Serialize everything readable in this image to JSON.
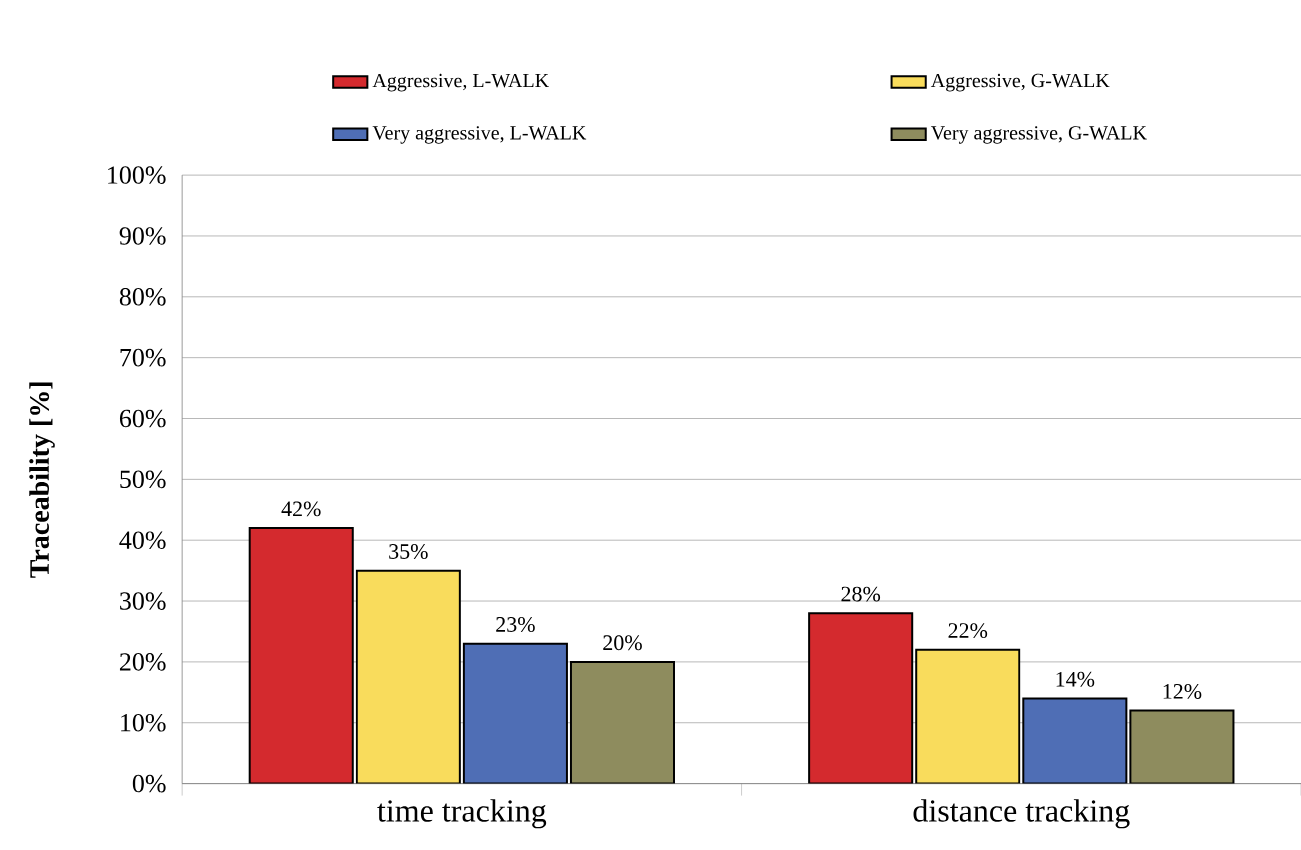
{
  "chart_data": {
    "type": "bar",
    "ylabel": "Traceability [%]",
    "categories": [
      "time tracking",
      "distance tracking"
    ],
    "series": [
      {
        "name": "Aggressive, L-WALK",
        "color": "#d42a2e",
        "values": [
          42,
          28
        ],
        "value_labels": [
          "42%",
          "28%"
        ]
      },
      {
        "name": "Aggressive, G-WALK",
        "color": "#f9dc5c",
        "values": [
          35,
          22
        ],
        "value_labels": [
          "35%",
          "22%"
        ]
      },
      {
        "name": "Very aggressive, L-WALK",
        "color": "#4f6eb5",
        "values": [
          23,
          14
        ],
        "value_labels": [
          "23%",
          "14%"
        ]
      },
      {
        "name": "Very aggressive, G-WALK",
        "color": "#8e8c5e",
        "values": [
          20,
          12
        ],
        "value_labels": [
          "20%",
          "12%"
        ]
      }
    ],
    "ylim": [
      0,
      100
    ],
    "yticks": [
      {
        "value": 0,
        "label": "0%"
      },
      {
        "value": 10,
        "label": "10%"
      },
      {
        "value": 20,
        "label": "20%"
      },
      {
        "value": 30,
        "label": "30%"
      },
      {
        "value": 40,
        "label": "40%"
      },
      {
        "value": 50,
        "label": "50%"
      },
      {
        "value": 60,
        "label": "60%"
      },
      {
        "value": 70,
        "label": "70%"
      },
      {
        "value": 80,
        "label": "80%"
      },
      {
        "value": 90,
        "label": "90%"
      },
      {
        "value": 100,
        "label": "100%"
      }
    ],
    "grid": "y",
    "legend": "top"
  }
}
